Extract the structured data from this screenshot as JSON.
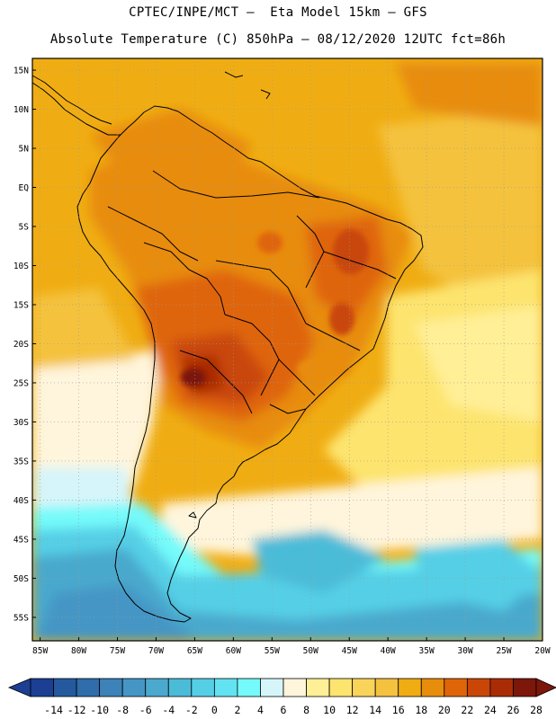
{
  "header": {
    "line1": "CPTEC/INPE/MCT —  Eta Model 15km — GFS",
    "line2": "Absolute Temperature (C) 850hPa — 08/12/2020 12UTC fct=86h"
  },
  "map": {
    "lat_labels": [
      "15N",
      "10N",
      "5N",
      "EQ",
      "5S",
      "10S",
      "15S",
      "20S",
      "25S",
      "30S",
      "35S",
      "40S",
      "45S",
      "50S",
      "55S"
    ],
    "lat_values": [
      15,
      10,
      5,
      0,
      -5,
      -10,
      -15,
      -20,
      -25,
      -30,
      -35,
      -40,
      -45,
      -50,
      -55
    ],
    "lon_labels": [
      "85W",
      "80W",
      "75W",
      "70W",
      "65W",
      "60W",
      "55W",
      "50W",
      "45W",
      "40W",
      "35W",
      "30W",
      "25W",
      "20W"
    ],
    "lon_values": [
      -85,
      -80,
      -75,
      -70,
      -65,
      -60,
      -55,
      -50,
      -45,
      -40,
      -35,
      -30,
      -25,
      -20
    ],
    "lat_range": [
      -58,
      16.5
    ],
    "lon_range": [
      -86,
      -20
    ]
  },
  "colorbar": {
    "labels": [
      "-14",
      "-12",
      "-10",
      "-8",
      "-6",
      "-4",
      "-2",
      "0",
      "2",
      "4",
      "6",
      "8",
      "10",
      "12",
      "14",
      "16",
      "18",
      "20",
      "22",
      "24",
      "26",
      "28"
    ],
    "colors": [
      "#1c3f94",
      "#24599e",
      "#2f6dab",
      "#3d82b8",
      "#4596c5",
      "#4aa9cd",
      "#4bbcd8",
      "#55cfe6",
      "#63e3f2",
      "#74fafa",
      "#d6f5fa",
      "#fff5dc",
      "#ffef96",
      "#fde46e",
      "#f9d45a",
      "#f4c23e",
      "#f0ad13",
      "#e88c0c",
      "#df6508",
      "#c94607",
      "#a92c06",
      "#7c170a"
    ]
  }
}
